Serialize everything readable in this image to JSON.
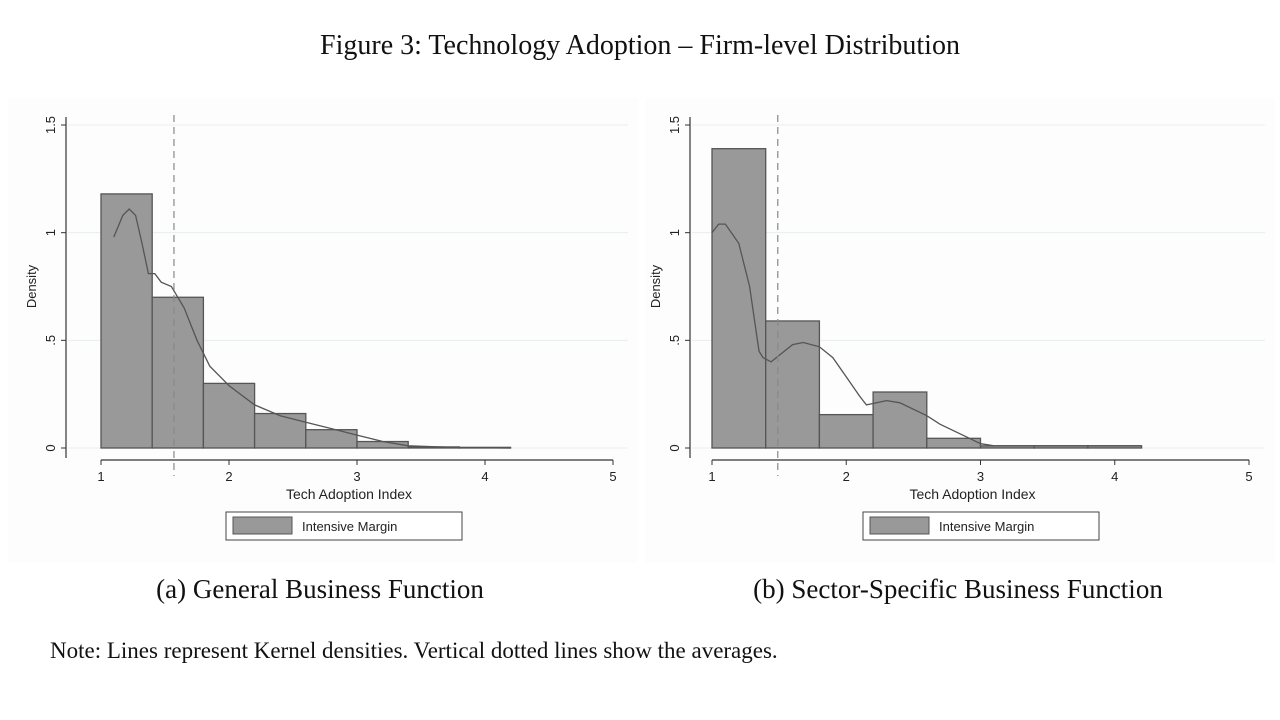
{
  "figure_title": "Figure 3: Technology Adoption – Firm-level Distribution",
  "note": "Note: Lines represent Kernel densities. Vertical dotted lines show the averages.",
  "colors": {
    "bar_fill": "#999999",
    "bar_stroke": "#555555",
    "kernel_line": "#555555",
    "grid": "#e6eeee",
    "mean_line": "#888888"
  },
  "chart_data": [
    {
      "type": "bar",
      "caption": "(a) General Business Function",
      "xlabel": "Tech Adoption Index",
      "ylabel": "Density",
      "xlim": [
        1,
        5
      ],
      "ylim": [
        0,
        1.5
      ],
      "xticks": [
        "1",
        "2",
        "3",
        "4",
        "5"
      ],
      "yticks": [
        "0",
        ".5",
        "1",
        "1.5"
      ],
      "grid": true,
      "legend": {
        "position": "bottom",
        "entries": [
          "Intensive Margin"
        ]
      },
      "bin_edges": [
        1.0,
        1.4,
        1.8,
        2.2,
        2.6,
        3.0,
        3.4,
        3.8,
        4.2
      ],
      "values": [
        1.18,
        0.7,
        0.3,
        0.16,
        0.085,
        0.03,
        0.005,
        0.003
      ],
      "mean": 1.57,
      "kernel": [
        [
          1.1,
          0.98
        ],
        [
          1.17,
          1.08
        ],
        [
          1.22,
          1.11
        ],
        [
          1.27,
          1.08
        ],
        [
          1.32,
          0.95
        ],
        [
          1.37,
          0.81
        ],
        [
          1.42,
          0.81
        ],
        [
          1.47,
          0.77
        ],
        [
          1.55,
          0.75
        ],
        [
          1.65,
          0.65
        ],
        [
          1.75,
          0.5
        ],
        [
          1.85,
          0.38
        ],
        [
          2.0,
          0.29
        ],
        [
          2.2,
          0.2
        ],
        [
          2.4,
          0.15
        ],
        [
          2.6,
          0.12
        ],
        [
          2.8,
          0.09
        ],
        [
          3.0,
          0.06
        ],
        [
          3.2,
          0.03
        ],
        [
          3.4,
          0.01
        ],
        [
          3.8,
          0.002
        ],
        [
          4.2,
          0.0
        ]
      ]
    },
    {
      "type": "bar",
      "caption": "(b) Sector-Specific Business Function",
      "xlabel": "Tech Adoption Index",
      "ylabel": "Density",
      "xlim": [
        1,
        5
      ],
      "ylim": [
        0,
        1.5
      ],
      "xticks": [
        "1",
        "2",
        "3",
        "4",
        "5"
      ],
      "yticks": [
        "0",
        ".5",
        "1",
        "1.5"
      ],
      "grid": true,
      "legend": {
        "position": "bottom",
        "entries": [
          "Intensive Margin"
        ]
      },
      "bin_edges": [
        1.0,
        1.4,
        1.8,
        2.2,
        2.6,
        3.0,
        3.4,
        3.8,
        4.2
      ],
      "values": [
        1.39,
        0.59,
        0.155,
        0.26,
        0.045,
        0.01,
        0.01,
        0.01
      ],
      "mean": 1.49,
      "kernel": [
        [
          1.0,
          1.0
        ],
        [
          1.05,
          1.04
        ],
        [
          1.1,
          1.04
        ],
        [
          1.2,
          0.95
        ],
        [
          1.28,
          0.75
        ],
        [
          1.35,
          0.45
        ],
        [
          1.38,
          0.42
        ],
        [
          1.44,
          0.4
        ],
        [
          1.5,
          0.43
        ],
        [
          1.6,
          0.48
        ],
        [
          1.68,
          0.49
        ],
        [
          1.8,
          0.47
        ],
        [
          1.9,
          0.42
        ],
        [
          2.0,
          0.33
        ],
        [
          2.1,
          0.24
        ],
        [
          2.15,
          0.2
        ],
        [
          2.3,
          0.22
        ],
        [
          2.4,
          0.21
        ],
        [
          2.6,
          0.15
        ],
        [
          2.7,
          0.11
        ],
        [
          2.9,
          0.05
        ],
        [
          3.0,
          0.02
        ],
        [
          3.1,
          0.01
        ],
        [
          4.2,
          0.01
        ]
      ]
    }
  ]
}
